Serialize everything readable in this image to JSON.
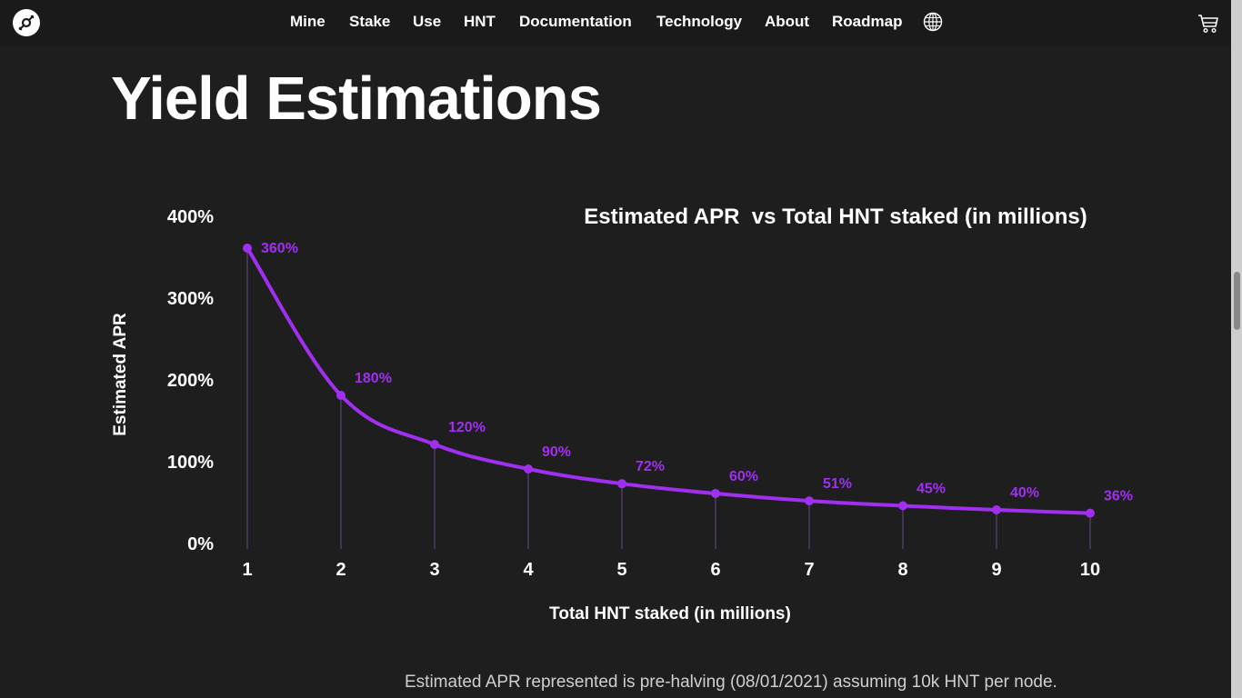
{
  "nav": {
    "items": [
      {
        "label": "Mine"
      },
      {
        "label": "Stake"
      },
      {
        "label": "Use"
      },
      {
        "label": "HNT"
      },
      {
        "label": "Documentation"
      },
      {
        "label": "Technology"
      },
      {
        "label": "About"
      },
      {
        "label": "Roadmap"
      }
    ],
    "icons": {
      "logo": "helium-logo-icon",
      "language": "globe-icon",
      "cart": "cart-icon"
    }
  },
  "page": {
    "title": "Yield Estimations",
    "footnote": "Estimated APR represented is pre-halving (08/01/2021) assuming 10k HNT per node."
  },
  "colors": {
    "accent": "#a12ff0",
    "background": "#1e1e1e",
    "text": "#ffffff"
  },
  "chart_data": {
    "type": "line",
    "title": "Estimated APR  vs Total HNT staked (in millions)",
    "xlabel": "Total HNT staked (in millions)",
    "ylabel": "Estimated APR",
    "x": [
      1,
      2,
      3,
      4,
      5,
      6,
      7,
      8,
      9,
      10
    ],
    "values": [
      360,
      180,
      120,
      90,
      72,
      60,
      51,
      45,
      40,
      36
    ],
    "data_labels": [
      "360%",
      "180%",
      "120%",
      "90%",
      "72%",
      "60%",
      "51%",
      "45%",
      "40%",
      "36%"
    ],
    "x_tick_labels": [
      "1",
      "2",
      "3",
      "4",
      "5",
      "6",
      "7",
      "8",
      "9",
      "10"
    ],
    "y_ticks": [
      0,
      100,
      200,
      300,
      400
    ],
    "y_tick_labels": [
      "0%",
      "100%",
      "200%",
      "300%",
      "400%"
    ],
    "xlim": [
      1,
      10
    ],
    "ylim": [
      0,
      400
    ],
    "grid": false,
    "legend": "none"
  }
}
